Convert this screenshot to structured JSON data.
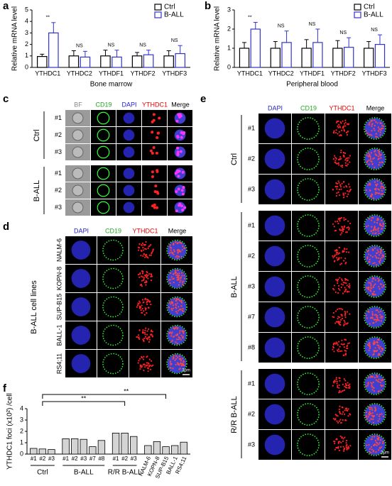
{
  "panel_labels": [
    "a",
    "b",
    "c",
    "d",
    "e",
    "f"
  ],
  "chart_data": [
    {
      "type": "bar",
      "y_label": "Relative mRNA level",
      "x_label": "Bone marrow",
      "categories": [
        "YTHDC1",
        "YTHDC2",
        "YTHDF1",
        "YTHDF2",
        "YTHDF3"
      ],
      "series": [
        {
          "name": "Ctrl",
          "color": "#000000",
          "values": [
            0.95,
            1.0,
            1.0,
            1.0,
            1.0
          ],
          "errors": [
            0.2,
            0.45,
            0.5,
            0.3,
            0.45
          ]
        },
        {
          "name": "B-ALL",
          "color": "#3333cc",
          "values": [
            3.0,
            0.9,
            0.9,
            1.1,
            1.2
          ],
          "errors": [
            0.9,
            0.5,
            0.6,
            0.4,
            0.7
          ]
        }
      ],
      "annotations": [
        "**",
        "NS",
        "NS",
        "NS",
        "NS"
      ],
      "ylim": [
        0,
        5
      ],
      "yticks": [
        0,
        1,
        2,
        3,
        4,
        5
      ],
      "legend": "top-right"
    },
    {
      "type": "bar",
      "y_label": "Relative mRNA level",
      "x_label": "Peripheral blood",
      "categories": [
        "YTHDC1",
        "YTHDC2",
        "YTHDF1",
        "YTHDF2",
        "YTHDF3"
      ],
      "series": [
        {
          "name": "Ctrl",
          "color": "#000000",
          "values": [
            1.0,
            1.0,
            1.0,
            1.0,
            1.0
          ],
          "errors": [
            0.3,
            0.35,
            0.45,
            0.4,
            0.35
          ]
        },
        {
          "name": "B-ALL",
          "color": "#3333cc",
          "values": [
            2.0,
            1.3,
            1.3,
            1.05,
            1.2
          ],
          "errors": [
            0.35,
            0.6,
            0.7,
            0.5,
            0.5
          ]
        }
      ],
      "annotations": [
        "**",
        "NS",
        "NS",
        "NS",
        "NS"
      ],
      "ylim": [
        0,
        3
      ],
      "yticks": [
        0,
        1,
        2,
        3
      ],
      "legend": "top-right"
    },
    {
      "type": "column",
      "y_label": "YTHDC1 foci (x10²) /cell",
      "ylim": [
        0,
        4
      ],
      "yticks": [
        0,
        1,
        2,
        3,
        4
      ],
      "groups": [
        {
          "name": "Ctrl",
          "color": "#000000",
          "categories": [
            "#1",
            "#2",
            "#3"
          ],
          "values": [
            0.5,
            0.45,
            0.4
          ]
        },
        {
          "name": "B-ALL",
          "color": "#3333cc",
          "categories": [
            "#1",
            "#2",
            "#3",
            "#7",
            "#8"
          ],
          "values": [
            1.35,
            1.35,
            1.3,
            0.65,
            1.2
          ]
        },
        {
          "name": "R/R B-ALL",
          "color": "#33cc33",
          "categories": [
            "#1",
            "#2",
            "#3"
          ],
          "values": [
            1.85,
            1.85,
            1.55
          ]
        },
        {
          "color": "#555555",
          "categories": [
            "NALM-6",
            "KOPN-8",
            "SUP-B15",
            "BALL-1",
            "RS4;11"
          ],
          "values": [
            0.75,
            1.1,
            0.65,
            0.75,
            1.05
          ]
        }
      ],
      "annotations": [
        "**",
        "**"
      ]
    }
  ],
  "image_panels": [
    {
      "columns": [
        "BF",
        "CD19",
        "DAPI",
        "YTHDC1",
        "Merge"
      ],
      "groups": [
        {
          "name": "Ctrl",
          "rows": [
            "#1",
            "#2",
            "#3"
          ]
        },
        {
          "name": "B-ALL",
          "rows": [
            "#1",
            "#2",
            "#3"
          ]
        }
      ]
    },
    {
      "columns": [
        "DAPI",
        "CD19",
        "YTHDC1",
        "Merge"
      ],
      "groups": [
        {
          "name": "B-ALL cell lines",
          "rows": [
            "NALM-6",
            "KOPN-8",
            "SUP-B15",
            "BALL-1",
            "RS4;11"
          ]
        }
      ],
      "scale_bar": "2μm"
    },
    {
      "columns": [
        "DAPI",
        "CD19",
        "YTHDC1",
        "Merge"
      ],
      "groups": [
        {
          "name": "Ctrl",
          "rows": [
            "#1",
            "#2",
            "#3"
          ]
        },
        {
          "name": "B-ALL",
          "rows": [
            "#1",
            "#2",
            "#3",
            "#7",
            "#8"
          ]
        },
        {
          "name": "R/R B-ALL",
          "rows": [
            "#1",
            "#2",
            "#3"
          ]
        }
      ],
      "scale_bar": "2μm"
    }
  ]
}
